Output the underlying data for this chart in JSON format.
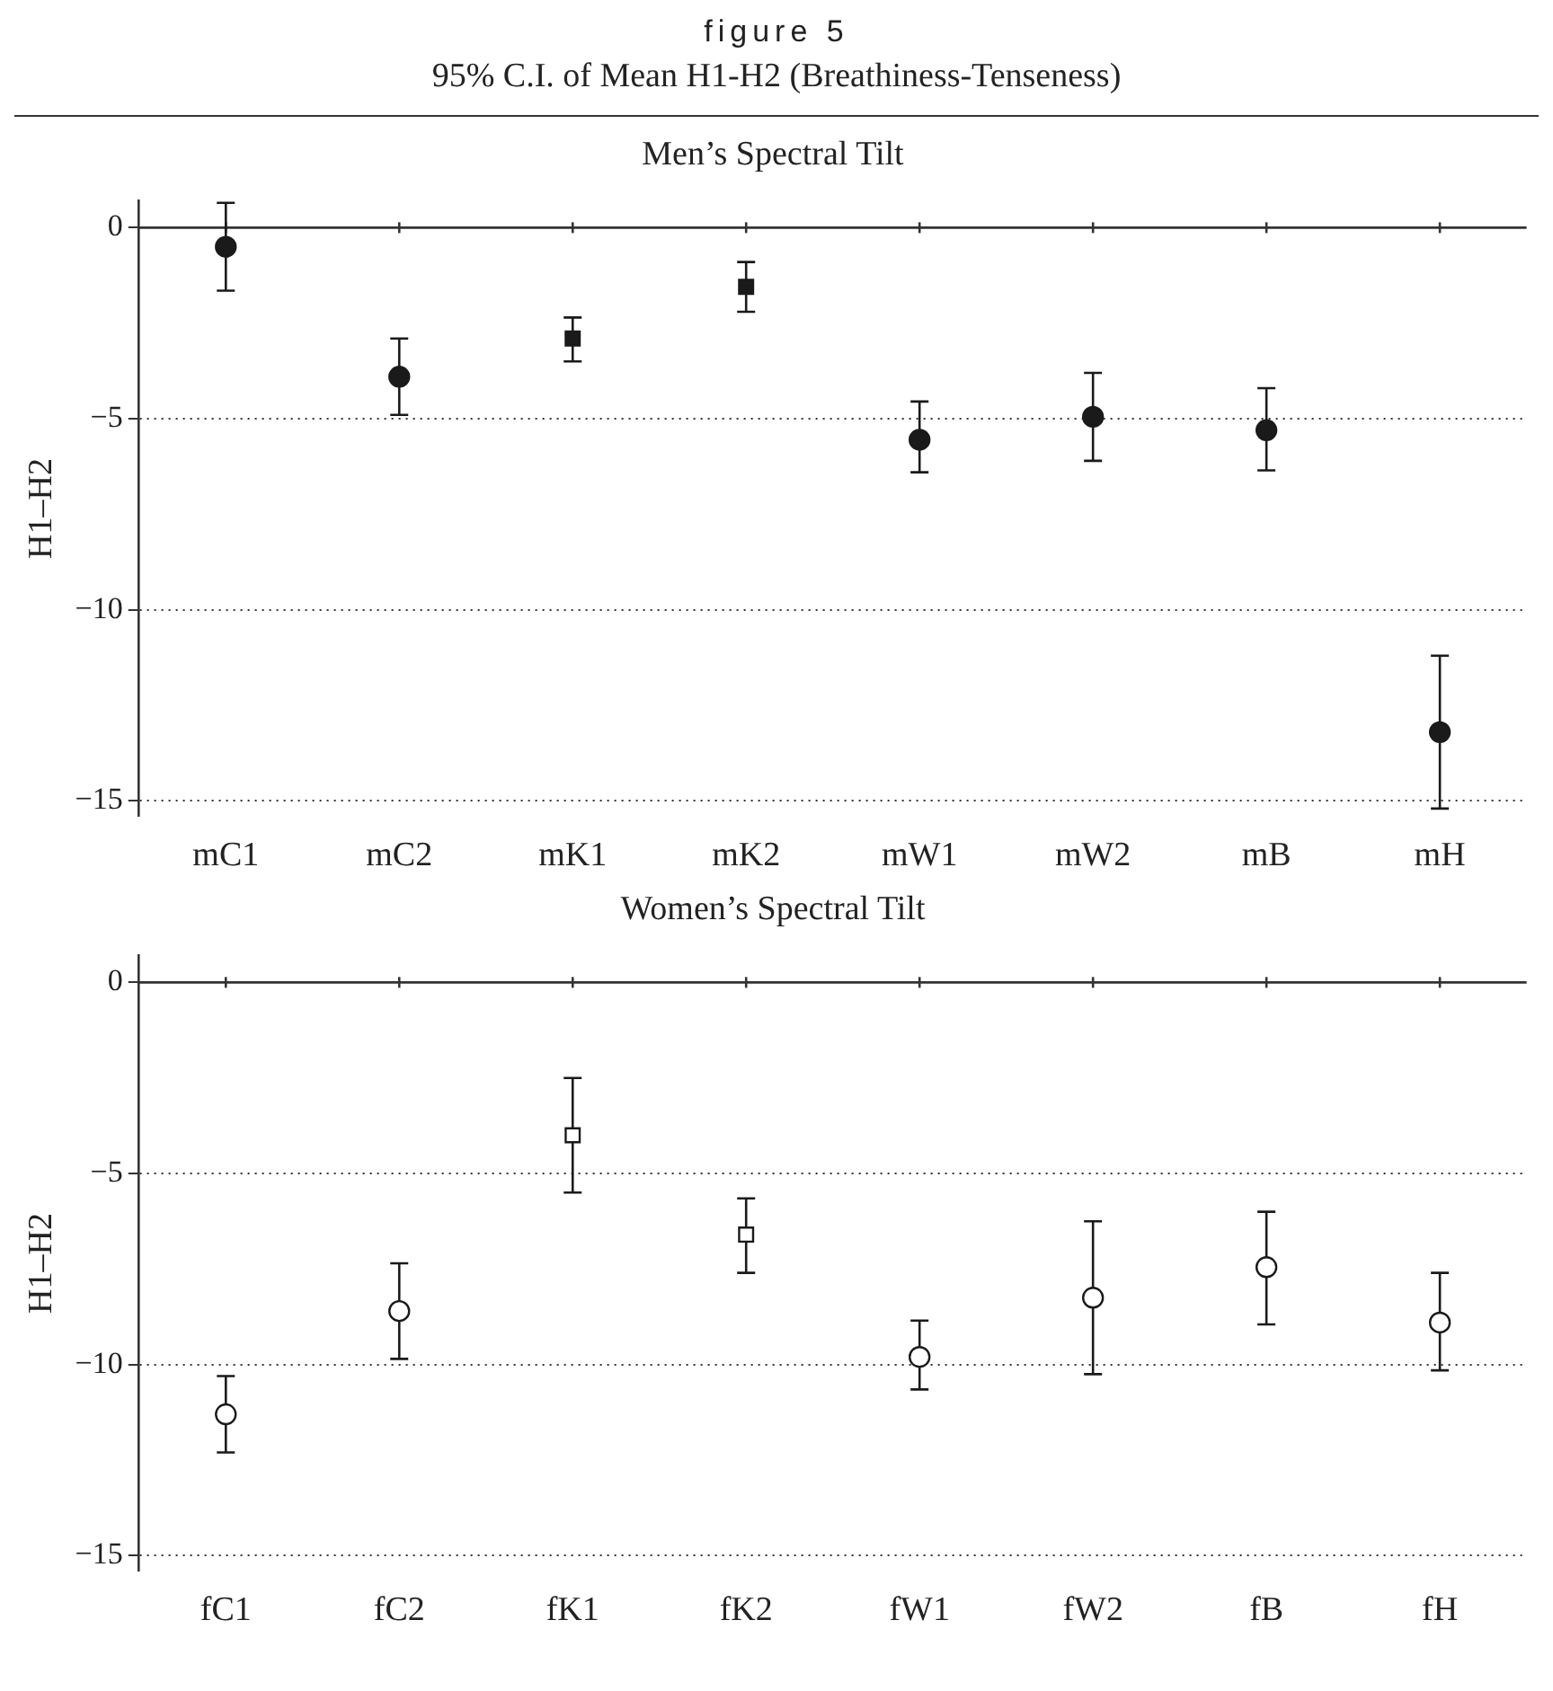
{
  "chart_data": [
    {
      "type": "scatter",
      "title": "Men’s Spectral Tilt",
      "annotations": [
        "figure 5",
        "95% C.I. of Mean H1-H2 (Breathiness-Tenseness)"
      ],
      "ylabel": "H1–H2",
      "categories": [
        "mC1",
        "mC2",
        "mK1",
        "mK2",
        "mW1",
        "mW2",
        "mB",
        "mH"
      ],
      "series": [
        {
          "color": "#1a1a1a",
          "marker": "circle",
          "values": [
            -0.5,
            -3.9,
            null,
            null,
            -5.55,
            -4.95,
            -5.3,
            -13.2
          ],
          "errors": [
            [
              -1.65,
              0.65
            ],
            [
              -4.9,
              -2.9
            ],
            null,
            null,
            [
              -6.4,
              -4.55
            ],
            [
              -6.1,
              -3.8
            ],
            [
              -6.35,
              -4.2
            ],
            [
              -15.2,
              -11.2
            ]
          ]
        },
        {
          "color": "#1a1a1a",
          "marker": "square",
          "values": [
            null,
            null,
            -2.9,
            -1.55,
            null,
            null,
            null,
            null
          ],
          "errors": [
            null,
            null,
            [
              -3.5,
              -2.35
            ],
            [
              -2.2,
              -0.9
            ],
            null,
            null,
            null,
            null
          ]
        }
      ],
      "ylim": [
        -15.4,
        0.7
      ],
      "yticks": [
        0,
        {
          "value": -5,
          "label": "−5"
        },
        {
          "value": -10,
          "label": "−10"
        },
        {
          "value": -15,
          "label": "−15"
        }
      ],
      "grid": "y",
      "line_style": "dotted",
      "ref_lines": [
        {
          "axis": "y",
          "value": 0,
          "color": "#333333",
          "line_style": "solid"
        }
      ]
    },
    {
      "type": "scatter",
      "title": "Women’s Spectral Tilt",
      "ylabel": "H1–H2",
      "categories": [
        "fC1",
        "fC2",
        "fK1",
        "fK2",
        "fW1",
        "fW2",
        "fB",
        "fH"
      ],
      "series": [
        {
          "color": "#ffffff",
          "marker": "circle",
          "values": [
            -11.3,
            -8.6,
            null,
            null,
            -9.8,
            -8.25,
            -7.45,
            -8.9
          ],
          "errors": [
            [
              -12.3,
              -10.3
            ],
            [
              -9.85,
              -7.35
            ],
            null,
            null,
            [
              -10.65,
              -8.85
            ],
            [
              -10.25,
              -6.25
            ],
            [
              -8.95,
              -6.0
            ],
            [
              -10.15,
              -7.6
            ]
          ]
        },
        {
          "color": "#ffffff",
          "marker": "square",
          "values": [
            null,
            null,
            -4.0,
            -6.6,
            null,
            null,
            null,
            null
          ],
          "errors": [
            null,
            null,
            [
              -5.5,
              -2.5
            ],
            [
              -7.6,
              -5.65
            ],
            null,
            null,
            null,
            null
          ]
        }
      ],
      "ylim": [
        -15.4,
        0.7
      ],
      "yticks": [
        0,
        {
          "value": -5,
          "label": "−5"
        },
        {
          "value": -10,
          "label": "−10"
        },
        {
          "value": -15,
          "label": "−15"
        }
      ],
      "grid": "y",
      "line_style": "dotted",
      "ref_lines": [
        {
          "axis": "y",
          "value": 0,
          "color": "#333333",
          "line_style": "solid"
        }
      ]
    }
  ]
}
